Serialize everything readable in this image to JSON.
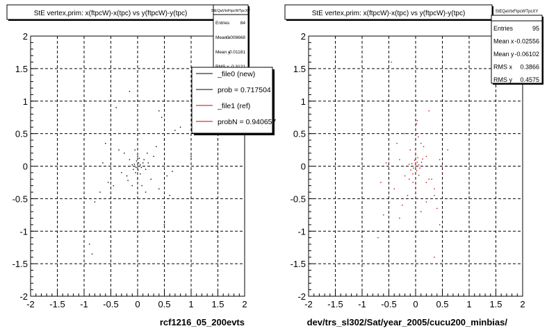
{
  "footer_text": "",
  "chart_data": [
    {
      "type": "scatter",
      "title": "StE  vertex,prim: x(ftpcW)-x(tpc) vs y(ftpcW)-y(tpc)",
      "xlabel": "rcf1216_05_200evts",
      "ylabel": "",
      "xlim": [
        -2,
        2
      ],
      "ylim": [
        -2,
        2
      ],
      "xticks": [
        "-2",
        "-1.5",
        "-1",
        "-0.5",
        "0",
        "0.5",
        "1",
        "1.5",
        "2"
      ],
      "yticks": [
        "-2",
        "-1.5",
        "-1",
        "-0.5",
        "0",
        "0.5",
        "1",
        "1.5",
        "2"
      ],
      "grid": true,
      "stats": {
        "name": "StEQaVtxFtpcWTpcXY",
        "rows": [
          {
            "label": "Entries",
            "value": "84"
          },
          {
            "label": "Mean x",
            "value": "-0.008668"
          },
          {
            "label": "Mean y",
            "value": "-0.01181"
          },
          {
            "label": "RMS x",
            "value": "0.3121"
          }
        ]
      },
      "legend": {
        "placement": "top-right",
        "entries": [
          {
            "label": "_file0 (new)",
            "color": "#000000"
          },
          {
            "label": "prob = 0.717504",
            "color": "#000000"
          },
          {
            "label": "_file1 (ref)",
            "color": "#cc0000"
          },
          {
            "label": "probN = 0.940657",
            "color": "#cc0000"
          }
        ]
      },
      "series": [
        {
          "color": "#000000",
          "points": [
            [
              0.0,
              0.0
            ],
            [
              0.02,
              0.05
            ],
            [
              -0.03,
              -0.02
            ],
            [
              0.05,
              0.02
            ],
            [
              -0.02,
              0.08
            ],
            [
              0.01,
              -0.06
            ],
            [
              0.07,
              -0.02
            ],
            [
              -0.06,
              0.03
            ],
            [
              0.03,
              0.12
            ],
            [
              -0.04,
              -0.1
            ],
            [
              0.1,
              0.05
            ],
            [
              -0.1,
              0.02
            ],
            [
              0.0,
              0.15
            ],
            [
              0.05,
              -0.12
            ],
            [
              -0.08,
              -0.05
            ],
            [
              0.12,
              0.1
            ],
            [
              -0.15,
              0.1
            ],
            [
              0.15,
              -0.05
            ],
            [
              -0.2,
              -0.15
            ],
            [
              0.2,
              0.05
            ],
            [
              0.0,
              -0.2
            ],
            [
              -0.25,
              0.2
            ],
            [
              0.3,
              0.15
            ],
            [
              0.25,
              -0.2
            ],
            [
              -0.3,
              -0.1
            ],
            [
              0.35,
              0.3
            ],
            [
              -0.35,
              0.25
            ],
            [
              0.4,
              -0.35
            ],
            [
              -0.45,
              -0.3
            ],
            [
              0.5,
              0.4
            ],
            [
              -0.6,
              0.35
            ],
            [
              0.6,
              -0.45
            ],
            [
              -0.7,
              -0.4
            ],
            [
              0.7,
              0.55
            ],
            [
              -0.8,
              -0.55
            ],
            [
              0.8,
              0.6
            ],
            [
              -0.9,
              -1.2
            ],
            [
              -0.85,
              -1.35
            ],
            [
              0.15,
              -0.4
            ],
            [
              -0.1,
              -0.3
            ],
            [
              0.3,
              1.0
            ],
            [
              0.4,
              0.85
            ],
            [
              -0.4,
              0.9
            ],
            [
              -0.15,
              1.15
            ],
            [
              0.45,
              0.75
            ],
            [
              -0.55,
              -0.25
            ],
            [
              0.55,
              -0.15
            ],
            [
              -0.65,
              0.05
            ],
            [
              0.65,
              -0.08
            ],
            [
              1.0,
              0.15
            ],
            [
              -1.0,
              -0.8
            ],
            [
              0.5,
              -0.9
            ],
            [
              -0.05,
              0.25
            ],
            [
              0.08,
              -0.3
            ],
            [
              0.18,
              0.2
            ],
            [
              -0.18,
              -0.22
            ]
          ]
        }
      ]
    },
    {
      "type": "scatter",
      "title": "StE  vertex,prim: x(ftpcW)-x(tpc) vs y(ftpcW)-y(tpc)",
      "xlabel": "dev/trs_sl302/Sat/year_2005/cucu200_minbias/",
      "ylabel": "",
      "xlim": [
        -2,
        2
      ],
      "ylim": [
        -2,
        2
      ],
      "xticks": [
        "-2",
        "-1.5",
        "-1",
        "-0.5",
        "0",
        "0.5",
        "1",
        "1.5",
        "2"
      ],
      "yticks": [
        "-2",
        "-1.5",
        "-1",
        "-0.5",
        "0",
        "0.5",
        "1",
        "1.5",
        "2"
      ],
      "grid": true,
      "stats": {
        "name": "StEQaVtxFtpcWTpcXY",
        "rows": [
          {
            "label": "Entries",
            "value": "95"
          },
          {
            "label": "Mean x",
            "value": "-0.02556"
          },
          {
            "label": "Mean y",
            "value": "-0.06102"
          },
          {
            "label": "RMS x",
            "value": "0.3866"
          },
          {
            "label": "RMS y",
            "value": "0.4575"
          }
        ]
      },
      "series": [
        {
          "color": "#cc0000",
          "points": [
            [
              0.0,
              0.0
            ],
            [
              0.03,
              0.06
            ],
            [
              -0.04,
              -0.03
            ],
            [
              0.06,
              0.02
            ],
            [
              -0.02,
              0.09
            ],
            [
              0.02,
              -0.07
            ],
            [
              0.08,
              -0.03
            ],
            [
              -0.07,
              0.04
            ],
            [
              0.04,
              0.13
            ],
            [
              -0.05,
              -0.12
            ],
            [
              0.11,
              0.06
            ],
            [
              -0.12,
              0.03
            ],
            [
              0.0,
              0.17
            ],
            [
              0.06,
              -0.14
            ],
            [
              -0.09,
              -0.06
            ],
            [
              0.13,
              0.11
            ],
            [
              0.05,
              0.45
            ],
            [
              0.03,
              0.7
            ],
            [
              0.02,
              0.65
            ],
            [
              -0.05,
              -0.25
            ],
            [
              -0.2,
              -0.15
            ],
            [
              0.15,
              0.3
            ],
            [
              -0.3,
              0.1
            ],
            [
              0.25,
              -0.2
            ],
            [
              -0.4,
              -0.35
            ],
            [
              0.35,
              -0.45
            ],
            [
              -0.5,
              -0.55
            ],
            [
              0.4,
              -0.65
            ],
            [
              0.45,
              -0.9
            ],
            [
              -0.6,
              -0.75
            ],
            [
              0.35,
              -1.4
            ],
            [
              -0.65,
              -0.25
            ],
            [
              -0.55,
              0.05
            ],
            [
              0.3,
              -0.2
            ],
            [
              0.2,
              -0.25
            ],
            [
              -0.15,
              -0.45
            ],
            [
              -0.1,
              0.25
            ],
            [
              0.6,
              0.25
            ],
            [
              -0.45,
              1.6
            ],
            [
              0.3,
              1.5
            ],
            [
              0.2,
              -0.55
            ],
            [
              -0.25,
              -0.6
            ],
            [
              0.1,
              -0.7
            ],
            [
              -0.3,
              -0.8
            ],
            [
              0.5,
              -0.1
            ],
            [
              -0.7,
              -1.1
            ],
            [
              0.25,
              0.85
            ],
            [
              -0.35,
              0.35
            ],
            [
              0.45,
              0.1
            ],
            [
              0.0,
              -0.35
            ],
            [
              0.15,
              -1.0
            ],
            [
              0.35,
              -0.35
            ],
            [
              -0.2,
              0.5
            ],
            [
              0.1,
              0.35
            ],
            [
              -0.12,
              -0.2
            ],
            [
              0.2,
              0.15
            ]
          ]
        }
      ]
    }
  ]
}
